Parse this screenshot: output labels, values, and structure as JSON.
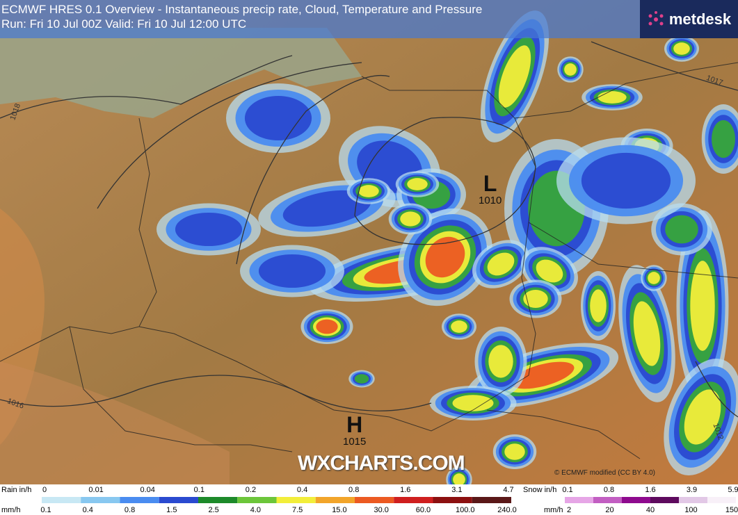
{
  "header": {
    "title": "ECMWF HRES 0.1 Overview - Instantaneous precip rate, Cloud, Temperature and Pressure",
    "run": "Run: Fri 10 Jul 00Z Valid: Fri 10 Jul 12:00 UTC"
  },
  "logo": "metdesk",
  "pressure_centers": [
    {
      "symbol": "L",
      "value": "1010"
    },
    {
      "symbol": "H",
      "value": "1015"
    }
  ],
  "isobar_labels": [
    "1016",
    "1018",
    "1017",
    "1012"
  ],
  "watermark": "WXCHARTS.COM",
  "credit": "© ECMWF  modified (CC BY 4.0)",
  "rain_legend": {
    "label_in": "Rain in/h",
    "label_mm": "mm/h",
    "in_ticks": [
      "0",
      "0.01",
      "0.04",
      "0.1",
      "0.2",
      "0.4",
      "0.8",
      "1.6",
      "3.1",
      "4.7"
    ],
    "mm_ticks": [
      "0.1",
      "0.4",
      "0.8",
      "1.5",
      "2.5",
      "4.0",
      "7.5",
      "15.0",
      "30.0",
      "60.0",
      "100.0",
      "240.0"
    ],
    "colors": [
      "#c8e8f4",
      "#88c8f0",
      "#4a8cf0",
      "#2a4ad0",
      "#1d8a2a",
      "#6cc63a",
      "#f2ee3a",
      "#f2a52a",
      "#ec5a22",
      "#cf1f1f",
      "#8c1010",
      "#5a1818"
    ]
  },
  "snow_legend": {
    "label_in": "Snow in/h",
    "label_mm": "mm/h",
    "in_ticks": [
      "0.1",
      "0.8",
      "1.6",
      "3.9",
      "5.9"
    ],
    "mm_ticks": [
      "2",
      "20",
      "40",
      "100",
      "150"
    ],
    "colors": [
      "#e6a6e6",
      "#c25ec2",
      "#8e0a8e",
      "#5e0a5e",
      "#e2c8e6",
      "#f8f0f8"
    ]
  }
}
